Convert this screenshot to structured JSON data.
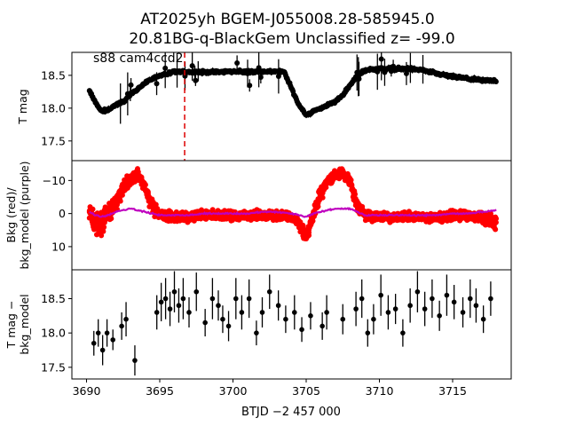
{
  "title_line1": "AT2025yh  BGEM-J055008.28-585945.0",
  "title_line2": "20.81BG-q-BlackGem Unclassified z= -99.0",
  "annotation": "s88 cam4ccd2",
  "colors": {
    "phot": "#000000",
    "bkg": "#ff0000",
    "bkg_model": "#bf00bf",
    "marker_line": "#dd0000"
  },
  "chart_data": [
    {
      "type": "scatter",
      "panel": "top",
      "ylabel": "T mag",
      "y_inverted": true,
      "xlim": [
        3689.0,
        3719.0
      ],
      "ylim": [
        18.85,
        17.2
      ],
      "yticks": [
        17.5,
        18.0,
        18.5
      ],
      "ytick_labels": [
        "17.5",
        "18.0",
        "18.5"
      ],
      "marker_x": 3696.7,
      "series": [
        {
          "style": "dense-errorbars",
          "x": [
            3690.2,
            3690.6,
            3691.0,
            3691.5,
            3692.0,
            3692.5,
            3693.0,
            3693.5,
            3694.0,
            3694.5,
            3695.0,
            3695.5,
            3696.0,
            3697.0,
            3698.0,
            3699.0,
            3700.0,
            3701.0,
            3702.0,
            3703.0,
            3703.5,
            3704.0,
            3704.5,
            3705.0,
            3705.5,
            3706.0,
            3706.5,
            3707.0,
            3707.5,
            3708.0,
            3708.5,
            3709.0,
            3710.0,
            3711.0,
            3712.0,
            3713.0,
            3714.0,
            3715.0,
            3716.0,
            3717.0,
            3718.0
          ],
          "y": [
            18.25,
            18.1,
            17.95,
            17.98,
            18.05,
            18.1,
            18.2,
            18.3,
            18.38,
            18.45,
            18.5,
            18.52,
            18.55,
            18.55,
            18.55,
            18.55,
            18.56,
            18.55,
            18.56,
            18.56,
            18.55,
            18.3,
            18.05,
            17.9,
            17.95,
            18.0,
            18.05,
            18.1,
            18.2,
            18.35,
            18.5,
            18.58,
            18.6,
            18.6,
            18.6,
            18.58,
            18.52,
            18.48,
            18.45,
            18.42,
            18.42
          ]
        }
      ]
    },
    {
      "type": "scatter",
      "panel": "middle",
      "ylabel": "Bkg (red)/\nbkg_model (purple)",
      "xlim": [
        3689.0,
        3719.0
      ],
      "ylim": [
        -16.0,
        17.0
      ],
      "yticks": [
        -10,
        0,
        10
      ],
      "ytick_labels": [
        "−10",
        "0",
        "10"
      ],
      "series": [
        {
          "style": "red-points",
          "x": [
            3690.2,
            3690.6,
            3691.0,
            3691.5,
            3692.0,
            3692.5,
            3693.0,
            3693.5,
            3694.0,
            3694.5,
            3695.0,
            3696.0,
            3697.0,
            3698.0,
            3699.0,
            3700.0,
            3701.0,
            3702.0,
            3703.0,
            3704.0,
            3704.5,
            3705.0,
            3705.5,
            3706.0,
            3706.5,
            3707.0,
            3707.5,
            3708.0,
            3708.5,
            3709.0,
            3710.0,
            3711.0,
            3712.0,
            3713.0,
            3714.0,
            3715.0,
            3716.0,
            3717.0,
            3718.0
          ],
          "y": [
            0.0,
            3.0,
            3.0,
            0.0,
            -3.0,
            -8.0,
            -10.0,
            -12.0,
            -8.0,
            -2.0,
            0.5,
            1.0,
            1.0,
            0.5,
            0.5,
            0.5,
            0.5,
            0.5,
            0.5,
            1.0,
            3.0,
            7.0,
            0.0,
            -6.0,
            -10.0,
            -12.0,
            -12.0,
            -10.0,
            -2.0,
            0.5,
            1.0,
            1.0,
            1.0,
            1.0,
            1.0,
            0.5,
            0.5,
            1.0,
            3.0
          ],
          "spread": [
            9.0,
            12.0,
            11.0,
            9.0,
            8.0,
            6.0,
            5.0,
            4.0,
            5.0,
            6.0,
            4.0,
            4.0,
            4.0,
            4.0,
            4.0,
            4.0,
            4.0,
            4.0,
            4.0,
            4.0,
            4.0,
            5.0,
            6.0,
            6.0,
            5.0,
            4.0,
            4.0,
            5.0,
            5.0,
            4.0,
            4.0,
            4.0,
            4.0,
            4.0,
            4.0,
            4.0,
            4.0,
            5.0,
            6.0
          ]
        },
        {
          "style": "purple-line",
          "x": [
            3690.2,
            3690.6,
            3691.0,
            3691.5,
            3692.0,
            3692.5,
            3693.0,
            3693.5,
            3694.0,
            3694.5,
            3695.0,
            3696.0,
            3697.0,
            3698.0,
            3699.0,
            3700.0,
            3701.0,
            3702.0,
            3703.0,
            3704.0,
            3704.5,
            3705.0,
            3705.5,
            3706.0,
            3706.5,
            3707.0,
            3707.5,
            3708.0,
            3708.5,
            3709.0,
            3710.0,
            3711.0,
            3712.0,
            3713.0,
            3714.0,
            3715.0,
            3716.0,
            3717.0,
            3718.0
          ],
          "y": [
            -0.5,
            0.5,
            1.0,
            0.5,
            -0.5,
            -1.0,
            -1.5,
            -1.0,
            -0.5,
            0.0,
            0.5,
            0.5,
            0.5,
            0.0,
            0.0,
            0.0,
            0.0,
            -0.5,
            -0.5,
            0.0,
            0.5,
            1.0,
            0.0,
            -0.5,
            -1.0,
            -1.5,
            -1.5,
            -1.5,
            -0.5,
            0.5,
            0.5,
            0.5,
            0.5,
            0.5,
            0.5,
            0.0,
            0.0,
            -0.5,
            -1.0
          ]
        }
      ]
    },
    {
      "type": "scatter",
      "panel": "bottom",
      "ylabel": "T mag −\nbkg_model",
      "y_inverted": true,
      "xlim": [
        3689.0,
        3719.0
      ],
      "ylim": [
        18.92,
        17.33
      ],
      "yticks": [
        17.5,
        18.0,
        18.5
      ],
      "ytick_labels": [
        "17.5",
        "18.0",
        "18.5"
      ],
      "xticks": [
        3690,
        3695,
        3700,
        3705,
        3710,
        3715
      ],
      "xtick_labels": [
        "3690",
        "3695",
        "3700",
        "3705",
        "3710",
        "3715"
      ],
      "xlabel": "BTJD −2 457 000",
      "series": [
        {
          "style": "errorbar-points",
          "x": [
            3690.5,
            3690.8,
            3691.1,
            3691.4,
            3691.8,
            3692.4,
            3692.7,
            3693.3,
            3694.8,
            3695.1,
            3695.4,
            3695.7,
            3696.0,
            3696.3,
            3696.6,
            3697.0,
            3697.5,
            3698.1,
            3698.6,
            3699.0,
            3699.3,
            3699.7,
            3700.2,
            3700.6,
            3701.1,
            3701.6,
            3702.0,
            3702.5,
            3703.1,
            3703.6,
            3704.2,
            3704.7,
            3705.3,
            3706.1,
            3706.4,
            3707.5,
            3708.4,
            3708.8,
            3709.2,
            3709.6,
            3710.1,
            3710.6,
            3711.1,
            3711.6,
            3712.1,
            3712.6,
            3713.1,
            3713.6,
            3714.1,
            3714.6,
            3715.1,
            3715.7,
            3716.2,
            3716.6,
            3717.1,
            3717.6
          ],
          "y": [
            17.85,
            18.0,
            17.75,
            18.0,
            17.9,
            18.1,
            18.2,
            17.6,
            18.3,
            18.45,
            18.5,
            18.35,
            18.6,
            18.4,
            18.5,
            18.3,
            18.6,
            18.15,
            18.5,
            18.4,
            18.2,
            18.1,
            18.5,
            18.3,
            18.5,
            18.0,
            18.3,
            18.6,
            18.4,
            18.2,
            18.3,
            18.05,
            18.25,
            18.1,
            18.3,
            18.2,
            18.35,
            18.5,
            18.0,
            18.2,
            18.55,
            18.3,
            18.35,
            18.0,
            18.4,
            18.6,
            18.35,
            18.5,
            18.25,
            18.55,
            18.45,
            18.3,
            18.5,
            18.4,
            18.2,
            18.5
          ],
          "err": [
            0.18,
            0.2,
            0.22,
            0.2,
            0.15,
            0.2,
            0.25,
            0.22,
            0.25,
            0.28,
            0.3,
            0.25,
            0.3,
            0.25,
            0.3,
            0.22,
            0.28,
            0.2,
            0.3,
            0.22,
            0.2,
            0.22,
            0.3,
            0.25,
            0.28,
            0.18,
            0.22,
            0.25,
            0.22,
            0.2,
            0.25,
            0.18,
            0.2,
            0.2,
            0.25,
            0.22,
            0.25,
            0.28,
            0.2,
            0.22,
            0.3,
            0.25,
            0.22,
            0.2,
            0.25,
            0.3,
            0.25,
            0.28,
            0.22,
            0.3,
            0.25,
            0.22,
            0.28,
            0.25,
            0.2,
            0.25
          ]
        }
      ]
    }
  ]
}
